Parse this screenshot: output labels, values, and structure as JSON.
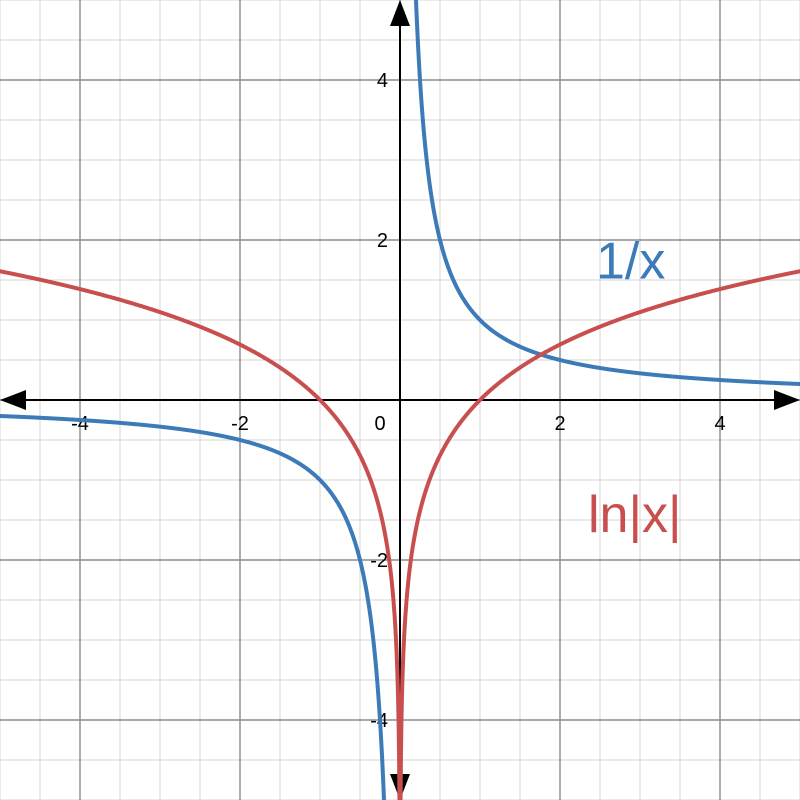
{
  "chart_data": {
    "type": "line",
    "title": "",
    "xlabel": "",
    "ylabel": "",
    "xlim": [
      -5,
      5
    ],
    "ylim": [
      -5,
      5
    ],
    "grid": true,
    "minor_grid_step": 0.5,
    "major_grid_step": 2,
    "x_tick_labels": [
      {
        "value": -4,
        "text": "-4"
      },
      {
        "value": -2,
        "text": "-2"
      },
      {
        "value": 0,
        "text": "0"
      },
      {
        "value": 2,
        "text": "2"
      },
      {
        "value": 4,
        "text": "4"
      }
    ],
    "y_tick_labels": [
      {
        "value": 4,
        "text": "4"
      },
      {
        "value": 2,
        "text": "2"
      },
      {
        "value": -2,
        "text": "-2"
      },
      {
        "value": -4,
        "text": "-4"
      }
    ],
    "series": [
      {
        "name": "1/x",
        "color": "#3d7ab8",
        "function": "reciprocal",
        "samples": [
          [
            -5,
            -0.2
          ],
          [
            -4,
            -0.25
          ],
          [
            -2,
            -0.5
          ],
          [
            -1,
            -1
          ],
          [
            -0.5,
            -2
          ],
          [
            -0.25,
            -4
          ],
          [
            -0.2,
            -5
          ],
          [
            0.2,
            5
          ],
          [
            0.25,
            4
          ],
          [
            0.5,
            2
          ],
          [
            1,
            1
          ],
          [
            2,
            0.5
          ],
          [
            4,
            0.25
          ],
          [
            5,
            0.2
          ]
        ]
      },
      {
        "name": "ln|x|",
        "color": "#c94f4f",
        "function": "log_abs",
        "samples": [
          [
            -5,
            1.609
          ],
          [
            -4,
            1.386
          ],
          [
            -2,
            0.693
          ],
          [
            -1,
            0
          ],
          [
            -0.5,
            -0.693
          ],
          [
            -0.1,
            -2.303
          ],
          [
            -0.0067,
            -5
          ],
          [
            0.0067,
            -5
          ],
          [
            0.1,
            -2.303
          ],
          [
            0.5,
            -0.693
          ],
          [
            1,
            0
          ],
          [
            2,
            0.693
          ],
          [
            4,
            1.386
          ],
          [
            5,
            1.609
          ]
        ]
      }
    ],
    "annotations": [
      {
        "text": "1/x",
        "series": "1/x",
        "x": 2.45,
        "y": 1.52
      },
      {
        "text": "ln|x|",
        "series": "ln|x|",
        "x": 2.35,
        "y": -1.65
      }
    ]
  },
  "colors": {
    "grid_minor": "#d5d5d5",
    "grid_major": "#8c8c8c",
    "axis": "#000000",
    "series_1": "#3d7ab8",
    "series_2": "#c94f4f"
  }
}
